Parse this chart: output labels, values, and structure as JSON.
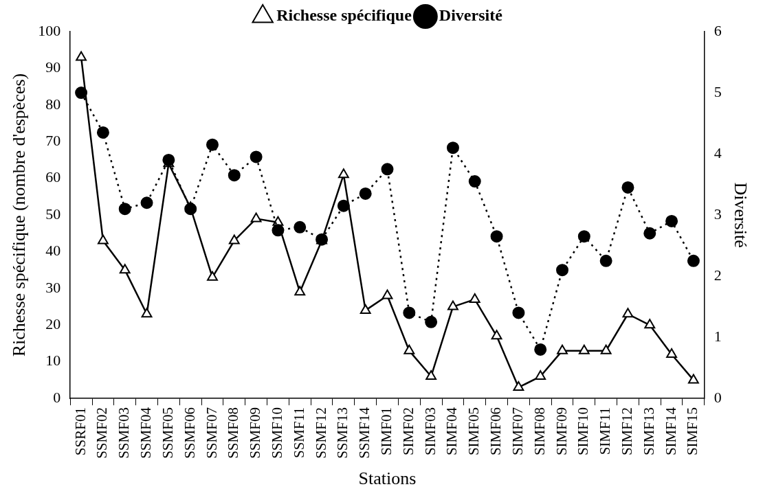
{
  "chart_data": {
    "type": "line",
    "xlabel": "Stations",
    "ylabel": "Richesse spécifique (nombre d'espèces)",
    "y2label": "Diversité",
    "categories": [
      "SSRF01",
      "SSMF02",
      "SSMF03",
      "SSMF04",
      "SSMF05",
      "SSMF06",
      "SSMF07",
      "SSMF08",
      "SSMF09",
      "SSMF10",
      "SSMF11",
      "SSMF12",
      "SSMF13",
      "SSMF14",
      "SIMF01",
      "SIMF02",
      "SIMF03",
      "SIMF04",
      "SIMF05",
      "SIMF06",
      "SIMF07",
      "SIMF08",
      "SIMF09",
      "SIMF10",
      "SIMF11",
      "SIMF12",
      "SIMF13",
      "SIMF14",
      "SIMF15"
    ],
    "series": [
      {
        "name": "Richesse spécifique",
        "color": "#000000",
        "marker": "triangle",
        "line_style": "solid",
        "values": [
          93,
          43,
          35,
          23,
          64,
          52,
          33,
          43,
          49,
          48,
          29,
          43,
          61,
          24,
          28,
          13,
          6,
          25,
          27,
          17,
          3,
          6,
          13,
          13,
          13,
          23,
          20,
          12,
          5
        ]
      },
      {
        "name": "Diversité",
        "color": "#000000",
        "marker": "circle",
        "line_style": "dotted",
        "axis": "y2",
        "values": [
          5.0,
          4.35,
          3.1,
          3.2,
          3.9,
          3.1,
          4.15,
          3.65,
          3.95,
          2.75,
          2.8,
          2.6,
          3.15,
          3.35,
          3.75,
          1.4,
          1.25,
          4.1,
          3.55,
          2.65,
          1.4,
          0.8,
          2.1,
          2.65,
          2.25,
          3.45,
          2.7,
          2.9,
          2.25
        ]
      }
    ],
    "ylim": [
      0,
      100
    ],
    "yticks": [
      0,
      10,
      20,
      30,
      40,
      50,
      60,
      70,
      80,
      90,
      100
    ],
    "y2lim": [
      0,
      6
    ],
    "y2ticks": [
      0,
      1,
      2,
      3,
      4,
      5,
      6
    ],
    "grid": false,
    "legend": "top"
  }
}
